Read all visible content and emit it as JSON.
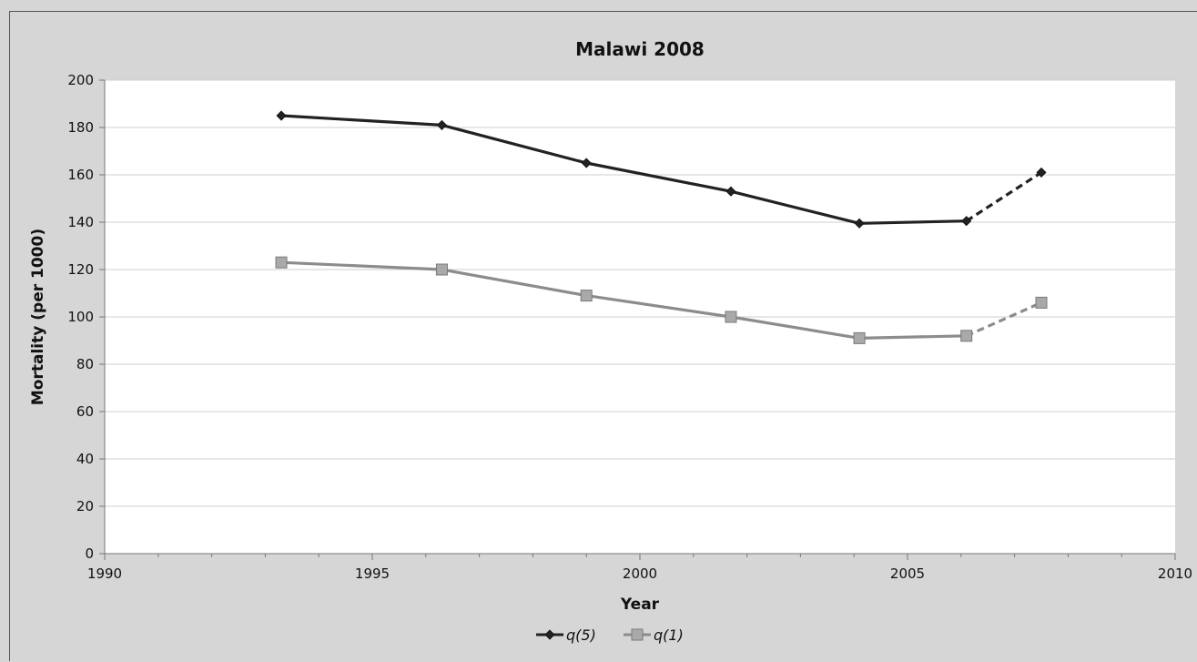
{
  "chart_data": {
    "type": "line",
    "title": "Malawi 2008",
    "xlabel": "Year",
    "ylabel": "Mortality (per 1000)",
    "xlim": [
      1990,
      2010
    ],
    "ylim": [
      0,
      200
    ],
    "xticks": [
      1990,
      1995,
      2000,
      2005,
      2010
    ],
    "yticks": [
      0,
      20,
      40,
      60,
      80,
      100,
      120,
      140,
      160,
      180,
      200
    ],
    "grid": true,
    "legend_position": "bottom",
    "series": [
      {
        "name": "q(5)",
        "color": "#222222",
        "marker": "diamond",
        "x": [
          1993.3,
          1996.3,
          1999.0,
          2001.7,
          2004.1,
          2006.1,
          2007.5
        ],
        "values": [
          185,
          181,
          165,
          153,
          139.5,
          140.5,
          161
        ],
        "dashed_from_index": 5
      },
      {
        "name": "q(1)",
        "color": "#8c8c8c",
        "marker": "square",
        "x": [
          1993.3,
          1996.3,
          1999.0,
          2001.7,
          2004.1,
          2006.1,
          2007.5
        ],
        "values": [
          123,
          120,
          109,
          100,
          91,
          92,
          106
        ],
        "dashed_from_index": 5
      }
    ]
  }
}
